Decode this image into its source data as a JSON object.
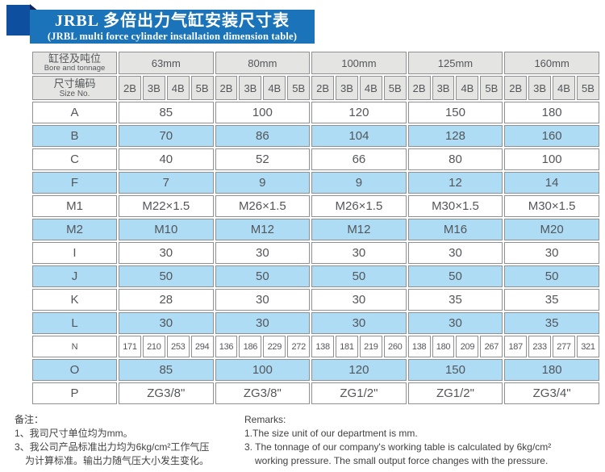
{
  "header": {
    "title_cn": "JRBL 多倍出力气缸安装尺寸表",
    "title_en": "(JRBL multi force cylinder installation dimension table)"
  },
  "table": {
    "corner_cn": "缸径及吨位",
    "corner_en": "Bore and tonnage",
    "size_label_cn": "尺寸编码",
    "size_label_en": "Size No.",
    "bores": [
      "63mm",
      "80mm",
      "100mm",
      "125mm",
      "160mm"
    ],
    "size_codes": [
      "2B",
      "3B",
      "4B",
      "5B"
    ],
    "rows": [
      {
        "label": "A",
        "values": [
          "85",
          "100",
          "120",
          "150",
          "180"
        ]
      },
      {
        "label": "B",
        "values": [
          "70",
          "86",
          "104",
          "128",
          "160"
        ]
      },
      {
        "label": "C",
        "values": [
          "40",
          "52",
          "66",
          "80",
          "100"
        ]
      },
      {
        "label": "F",
        "values": [
          "7",
          "9",
          "9",
          "12",
          "14"
        ]
      },
      {
        "label": "M1",
        "values": [
          "M22×1.5",
          "M26×1.5",
          "M26×1.5",
          "M30×1.5",
          "M30×1.5"
        ]
      },
      {
        "label": "M2",
        "values": [
          "M10",
          "M12",
          "M12",
          "M16",
          "M20"
        ]
      },
      {
        "label": "I",
        "values": [
          "30",
          "30",
          "30",
          "30",
          "30"
        ]
      },
      {
        "label": "J",
        "values": [
          "50",
          "50",
          "50",
          "50",
          "50"
        ]
      },
      {
        "label": "K",
        "values": [
          "28",
          "30",
          "30",
          "35",
          "35"
        ]
      },
      {
        "label": "L",
        "values": [
          "30",
          "30",
          "30",
          "30",
          "35"
        ]
      },
      {
        "label": "N",
        "values": [
          "171",
          "210",
          "253",
          "294",
          "136",
          "186",
          "229",
          "272",
          "138",
          "181",
          "219",
          "260",
          "138",
          "180",
          "209",
          "267",
          "187",
          "233",
          "277",
          "321"
        ]
      },
      {
        "label": "O",
        "values": [
          "85",
          "100",
          "120",
          "150",
          "180"
        ]
      },
      {
        "label": "P",
        "values": [
          "ZG3/8\"",
          "ZG3/8\"",
          "ZG1/2\"",
          "ZG1/2\"",
          "ZG3/4\""
        ]
      }
    ]
  },
  "notes_cn": [
    {
      "text": "备注：",
      "indent": false
    },
    {
      "text": "1、我司尺寸单位均为mm。",
      "indent": false
    },
    {
      "text": "3、我公司产品标准出力均为6kg/cm²工作气压",
      "indent": false
    },
    {
      "text": "为计算标准。输出力随气压大小发生变化。",
      "indent": true
    }
  ],
  "notes_en": [
    {
      "text": "Remarks:",
      "indent": false
    },
    {
      "text": "1.The size unit of our department is mm.",
      "indent": false
    },
    {
      "text": "3. The tonnage of our company's working table is calculated by 6kg/cm²",
      "indent": false
    },
    {
      "text": "working pressure. The small output force changes with the pressure.",
      "indent": true
    }
  ],
  "colors": {
    "banner_blue": "#1b74b9",
    "ribbon_blue": "#0e4fa0",
    "fold_navy": "#13265c",
    "row_blue": "#aedcf4",
    "header_gray": "#e4e4e2",
    "border_gray": "#8f9092",
    "table_text_gray": "#54565a"
  }
}
